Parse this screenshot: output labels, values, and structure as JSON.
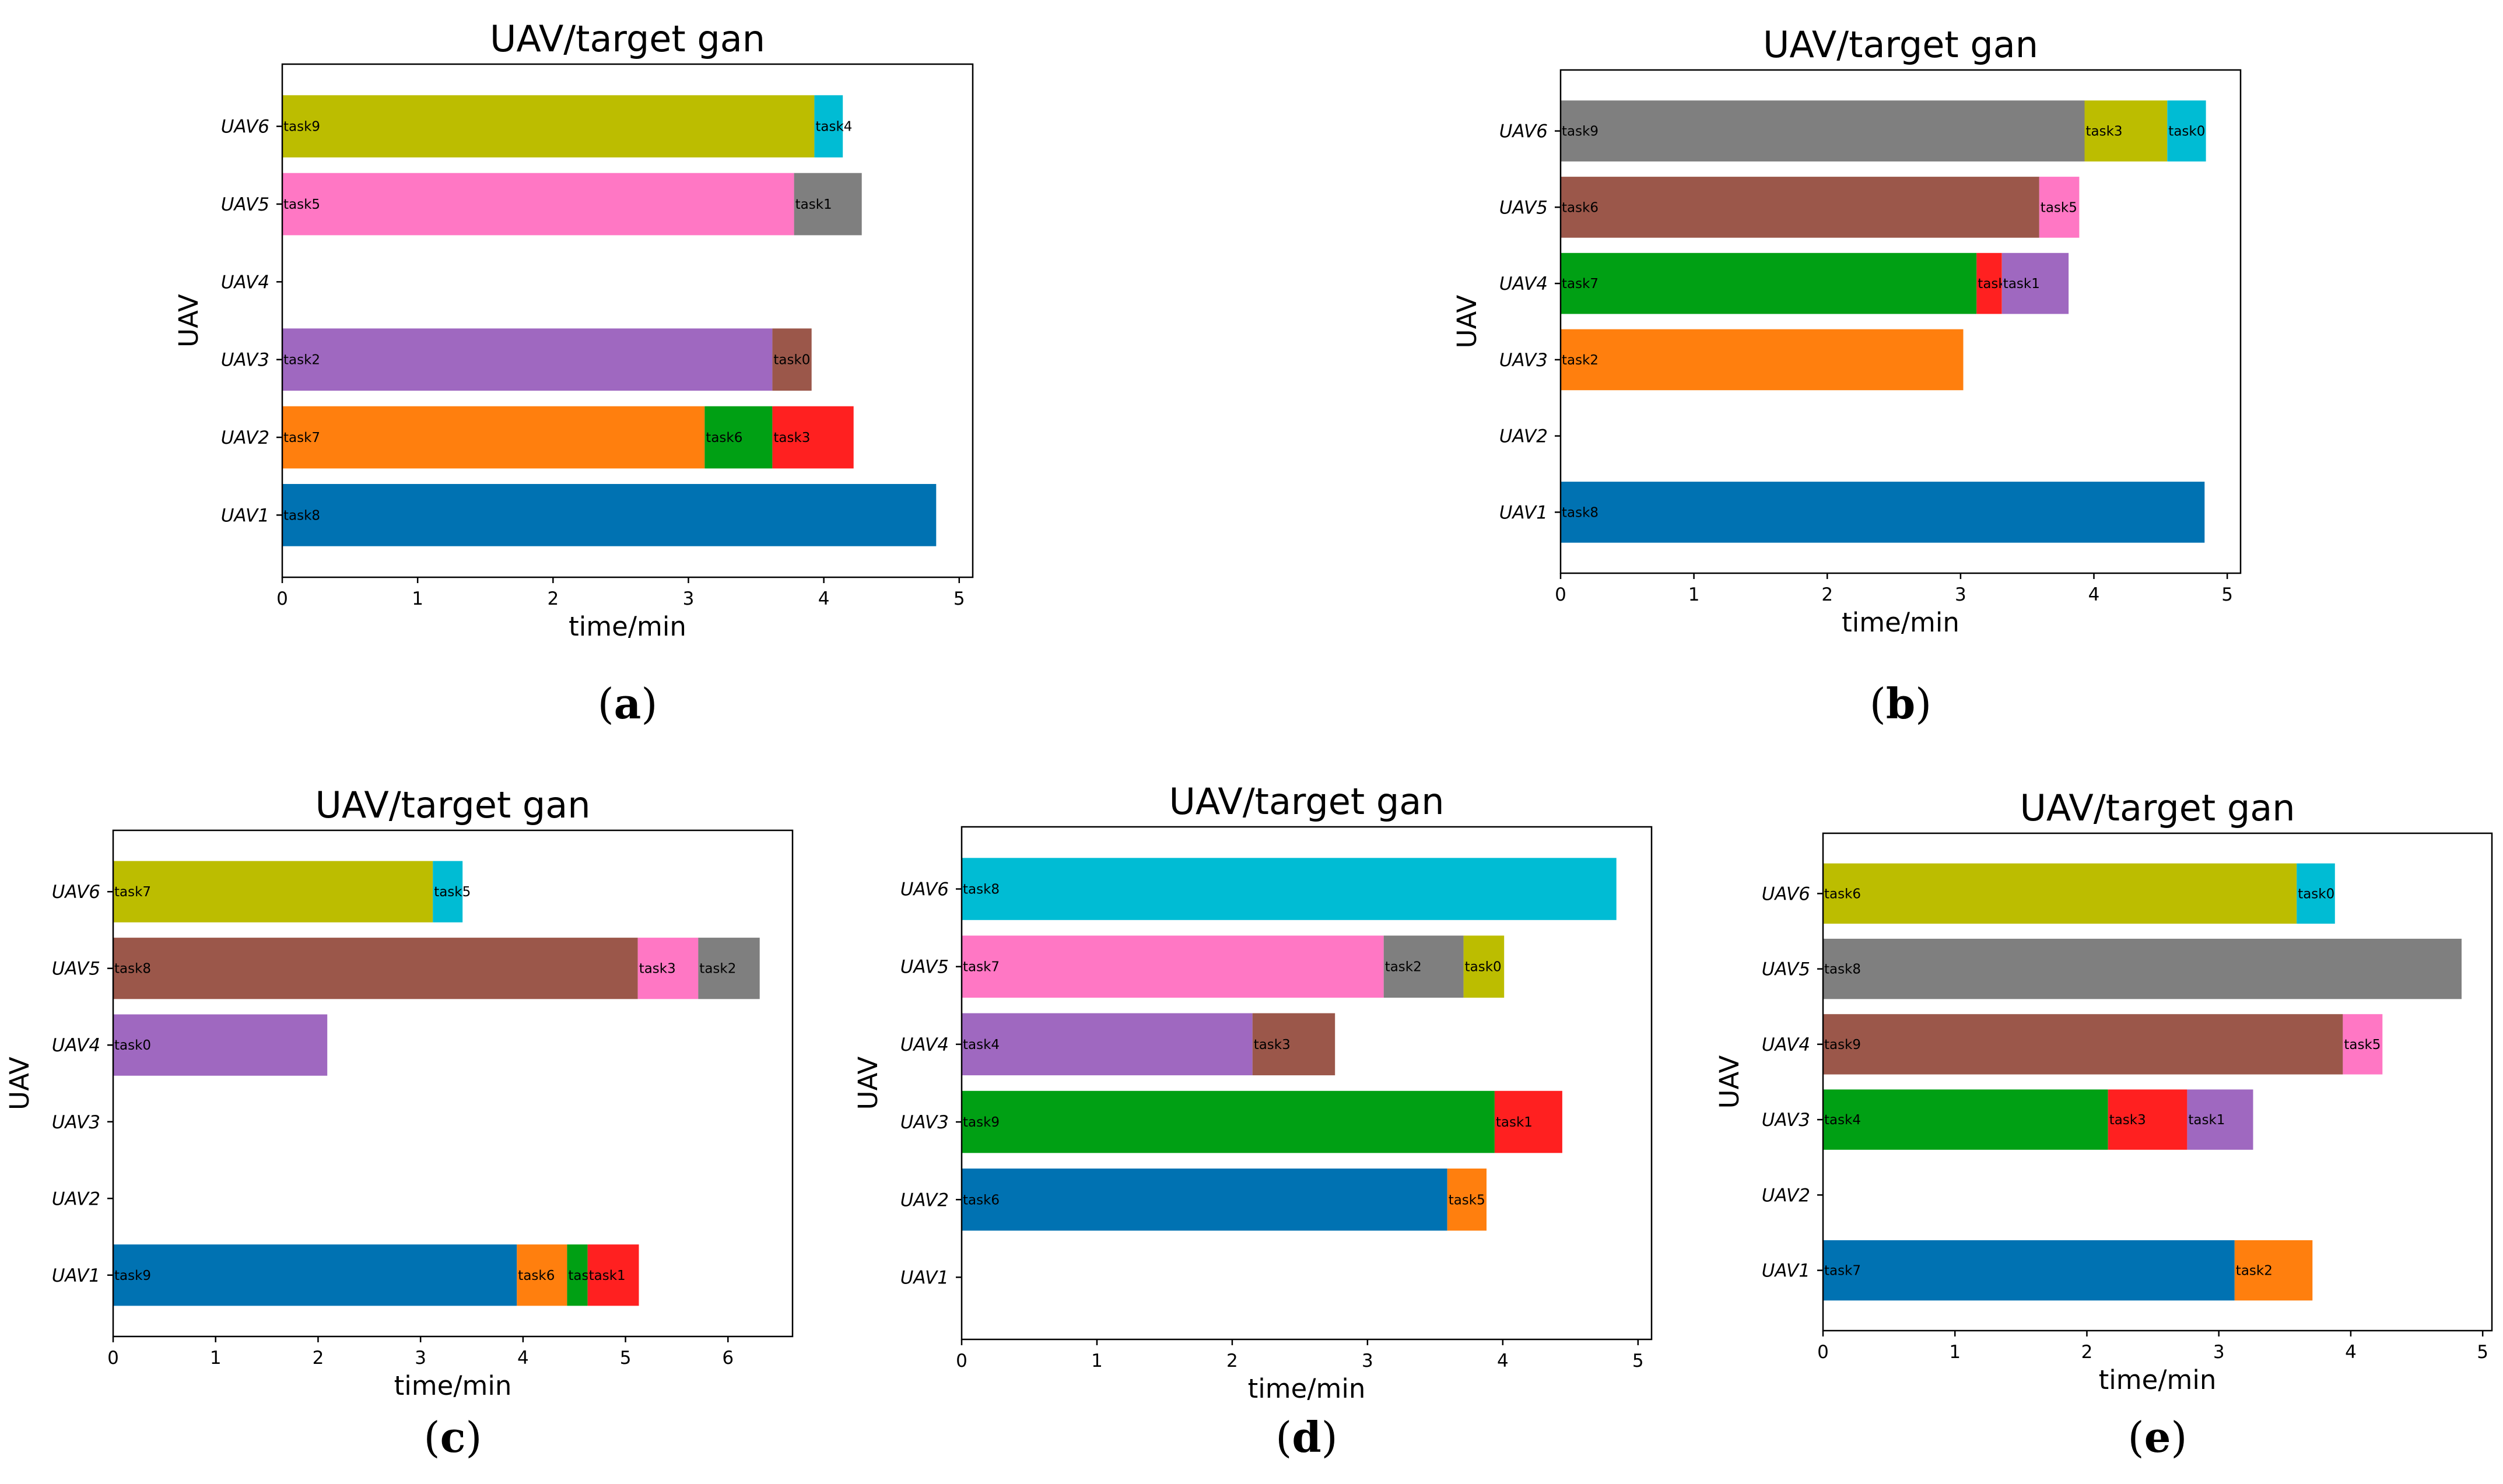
{
  "chart_data": [
    {
      "panel_label": "(a)",
      "letter": "a",
      "type": "bar",
      "orientation": "horizontal",
      "stacked": true,
      "title": "UAV/target gan",
      "xlabel": "time/min",
      "ylabel": "UAV",
      "xlim": [
        0,
        5.1
      ],
      "xticks": [
        "0",
        "1",
        "2",
        "3",
        "4",
        "5"
      ],
      "categories": [
        "UAV1",
        "UAV2",
        "UAV3",
        "UAV4",
        "UAV5",
        "UAV6"
      ],
      "segments": [
        {
          "row": "UAV1",
          "task": "task8",
          "start": 0,
          "end": 4.83,
          "color": "#0072b2"
        },
        {
          "row": "UAV2",
          "task": "task7",
          "start": 0,
          "end": 3.12,
          "color": "#ff7f0e"
        },
        {
          "row": "UAV2",
          "task": "task6",
          "start": 3.12,
          "end": 3.62,
          "color": "#00a014"
        },
        {
          "row": "UAV2",
          "task": "task3",
          "start": 3.62,
          "end": 4.22,
          "color": "#ff2020"
        },
        {
          "row": "UAV3",
          "task": "task2",
          "start": 0,
          "end": 3.62,
          "color": "#9f68c0"
        },
        {
          "row": "UAV3",
          "task": "task0",
          "start": 3.62,
          "end": 3.91,
          "color": "#9b574a"
        },
        {
          "row": "UAV5",
          "task": "task5",
          "start": 0,
          "end": 3.78,
          "color": "#ff77c4"
        },
        {
          "row": "UAV5",
          "task": "task1",
          "start": 3.78,
          "end": 4.28,
          "color": "#7f7f7f"
        },
        {
          "row": "UAV6",
          "task": "task9",
          "start": 0,
          "end": 3.93,
          "color": "#bcbd00"
        },
        {
          "row": "UAV6",
          "task": "task4",
          "start": 3.93,
          "end": 4.14,
          "color": "#00bcd4"
        }
      ]
    },
    {
      "panel_label": "(b)",
      "letter": "b",
      "type": "bar",
      "orientation": "horizontal",
      "stacked": true,
      "title": "UAV/target gan",
      "xlabel": "time/min",
      "ylabel": "UAV",
      "xlim": [
        0,
        5.1
      ],
      "xticks": [
        "0",
        "1",
        "2",
        "3",
        "4",
        "5"
      ],
      "categories": [
        "UAV1",
        "UAV2",
        "UAV3",
        "UAV4",
        "UAV5",
        "UAV6"
      ],
      "segments": [
        {
          "row": "UAV1",
          "task": "task8",
          "start": 0,
          "end": 4.83,
          "color": "#0072b2"
        },
        {
          "row": "UAV3",
          "task": "task2",
          "start": 0,
          "end": 3.02,
          "color": "#ff7f0e"
        },
        {
          "row": "UAV4",
          "task": "task7",
          "start": 0,
          "end": 3.12,
          "color": "#00a014"
        },
        {
          "row": "UAV4",
          "task": "task4",
          "start": 3.12,
          "end": 3.31,
          "color": "#ff2020"
        },
        {
          "row": "UAV4",
          "task": "task1",
          "start": 3.31,
          "end": 3.81,
          "color": "#9f68c0"
        },
        {
          "row": "UAV5",
          "task": "task6",
          "start": 0,
          "end": 3.59,
          "color": "#9b574a"
        },
        {
          "row": "UAV5",
          "task": "task5",
          "start": 3.59,
          "end": 3.89,
          "color": "#ff77c4"
        },
        {
          "row": "UAV6",
          "task": "task9",
          "start": 0,
          "end": 3.93,
          "color": "#7f7f7f"
        },
        {
          "row": "UAV6",
          "task": "task3",
          "start": 3.93,
          "end": 4.55,
          "color": "#bcbd00"
        },
        {
          "row": "UAV6",
          "task": "task0",
          "start": 4.55,
          "end": 4.84,
          "color": "#00bcd4"
        }
      ]
    },
    {
      "panel_label": "(c)",
      "letter": "c",
      "type": "bar",
      "orientation": "horizontal",
      "stacked": true,
      "title": "UAV/target gan",
      "xlabel": "time/min",
      "ylabel": "UAV",
      "xlim": [
        0,
        6.63
      ],
      "xticks": [
        "0",
        "1",
        "2",
        "3",
        "4",
        "5",
        "6"
      ],
      "categories": [
        "UAV1",
        "UAV2",
        "UAV3",
        "UAV4",
        "UAV5",
        "UAV6"
      ],
      "segments": [
        {
          "row": "UAV1",
          "task": "task9",
          "start": 0,
          "end": 3.94,
          "color": "#0072b2"
        },
        {
          "row": "UAV1",
          "task": "task6",
          "start": 3.94,
          "end": 4.43,
          "color": "#ff7f0e"
        },
        {
          "row": "UAV1",
          "task": "task4",
          "start": 4.43,
          "end": 4.63,
          "color": "#00a014"
        },
        {
          "row": "UAV1",
          "task": "task1",
          "start": 4.63,
          "end": 5.13,
          "color": "#ff2020"
        },
        {
          "row": "UAV4",
          "task": "task0",
          "start": 0,
          "end": 2.09,
          "color": "#9f68c0"
        },
        {
          "row": "UAV5",
          "task": "task8",
          "start": 0,
          "end": 5.12,
          "color": "#9b574a"
        },
        {
          "row": "UAV5",
          "task": "task3",
          "start": 5.12,
          "end": 5.71,
          "color": "#ff77c4"
        },
        {
          "row": "UAV5",
          "task": "task2",
          "start": 5.71,
          "end": 6.31,
          "color": "#7f7f7f"
        },
        {
          "row": "UAV6",
          "task": "task7",
          "start": 0,
          "end": 3.12,
          "color": "#bcbd00"
        },
        {
          "row": "UAV6",
          "task": "task5",
          "start": 3.12,
          "end": 3.41,
          "color": "#00bcd4"
        }
      ]
    },
    {
      "panel_label": "(d)",
      "letter": "d",
      "type": "bar",
      "orientation": "horizontal",
      "stacked": true,
      "title": "UAV/target gan",
      "xlabel": "time/min",
      "ylabel": "UAV",
      "xlim": [
        0,
        5.1
      ],
      "xticks": [
        "0",
        "1",
        "2",
        "3",
        "4",
        "5"
      ],
      "categories": [
        "UAV1",
        "UAV2",
        "UAV3",
        "UAV4",
        "UAV5",
        "UAV6"
      ],
      "segments": [
        {
          "row": "UAV2",
          "task": "task6",
          "start": 0,
          "end": 3.59,
          "color": "#0072b2"
        },
        {
          "row": "UAV2",
          "task": "task5",
          "start": 3.59,
          "end": 3.88,
          "color": "#ff7f0e"
        },
        {
          "row": "UAV3",
          "task": "task9",
          "start": 0,
          "end": 3.94,
          "color": "#00a014"
        },
        {
          "row": "UAV3",
          "task": "task1",
          "start": 3.94,
          "end": 4.44,
          "color": "#ff2020"
        },
        {
          "row": "UAV4",
          "task": "task4",
          "start": 0,
          "end": 2.15,
          "color": "#9f68c0"
        },
        {
          "row": "UAV4",
          "task": "task3",
          "start": 2.15,
          "end": 2.76,
          "color": "#9b574a"
        },
        {
          "row": "UAV5",
          "task": "task7",
          "start": 0,
          "end": 3.12,
          "color": "#ff77c4"
        },
        {
          "row": "UAV5",
          "task": "task2",
          "start": 3.12,
          "end": 3.71,
          "color": "#7f7f7f"
        },
        {
          "row": "UAV5",
          "task": "task0",
          "start": 3.71,
          "end": 4.01,
          "color": "#bcbd00"
        },
        {
          "row": "UAV6",
          "task": "task8",
          "start": 0,
          "end": 4.84,
          "color": "#00bcd4"
        }
      ]
    },
    {
      "panel_label": "(e)",
      "letter": "e",
      "type": "bar",
      "orientation": "horizontal",
      "stacked": true,
      "title": "UAV/target gan",
      "xlabel": "time/min",
      "ylabel": "UAV",
      "xlim": [
        0,
        5.07
      ],
      "xticks": [
        "0",
        "1",
        "2",
        "3",
        "4",
        "5"
      ],
      "categories": [
        "UAV1",
        "UAV2",
        "UAV3",
        "UAV4",
        "UAV5",
        "UAV6"
      ],
      "segments": [
        {
          "row": "UAV1",
          "task": "task7",
          "start": 0,
          "end": 3.12,
          "color": "#0072b2"
        },
        {
          "row": "UAV1",
          "task": "task2",
          "start": 3.12,
          "end": 3.71,
          "color": "#ff7f0e"
        },
        {
          "row": "UAV3",
          "task": "task4",
          "start": 0,
          "end": 2.16,
          "color": "#00a014"
        },
        {
          "row": "UAV3",
          "task": "task3",
          "start": 2.16,
          "end": 2.76,
          "color": "#ff2020"
        },
        {
          "row": "UAV3",
          "task": "task1",
          "start": 2.76,
          "end": 3.26,
          "color": "#9f68c0"
        },
        {
          "row": "UAV4",
          "task": "task9",
          "start": 0,
          "end": 3.94,
          "color": "#9b574a"
        },
        {
          "row": "UAV4",
          "task": "task5",
          "start": 3.94,
          "end": 4.24,
          "color": "#ff77c4"
        },
        {
          "row": "UAV5",
          "task": "task8",
          "start": 0,
          "end": 4.84,
          "color": "#7f7f7f"
        },
        {
          "row": "UAV6",
          "task": "task6",
          "start": 0,
          "end": 3.59,
          "color": "#bcbd00"
        },
        {
          "row": "UAV6",
          "task": "task0",
          "start": 3.59,
          "end": 3.88,
          "color": "#00bcd4"
        }
      ]
    }
  ]
}
